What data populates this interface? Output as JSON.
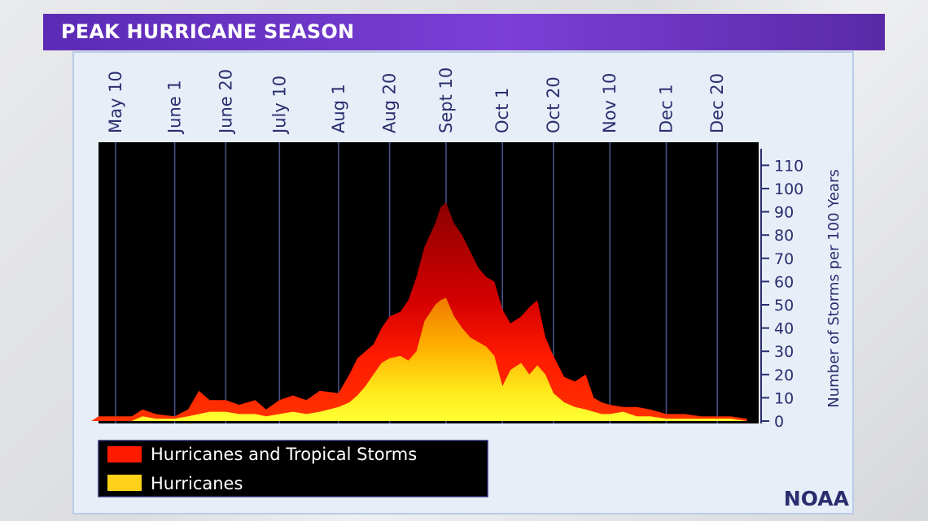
{
  "header": {
    "title": "PEAK HURRICANE SEASON"
  },
  "brand": {
    "source": "NOAA"
  },
  "colors": {
    "title_bar": "#6a35c7",
    "all_storms": "#ff1a00",
    "hurricanes": "#ffd21a",
    "plot_bg": "#000000",
    "axis_text": "#2b2d6e"
  },
  "chart_data": {
    "type": "area",
    "title": "",
    "xlabel": "",
    "ylabel": "Number of Storms per 100 Years",
    "ylim": [
      0,
      120
    ],
    "yticks": [
      0,
      10,
      20,
      30,
      40,
      50,
      60,
      70,
      80,
      90,
      100,
      110
    ],
    "x_dates": [
      "May 10",
      "June 1",
      "June 20",
      "July 10",
      "Aug 1",
      "Aug 20",
      "Sept 10",
      "Oct 1",
      "Oct 20",
      "Nov 10",
      "Dec 1",
      "Dec 20"
    ],
    "grid": "vertical lines at dates",
    "legend": {
      "placement": "bottom-left",
      "entries": [
        "Hurricanes and Tropical Storms",
        "Hurricanes"
      ]
    },
    "series": [
      {
        "name": "Hurricanes and Tropical Storms",
        "x": [
          "May 1",
          "May 10",
          "May 16",
          "May 20",
          "May 25",
          "June 1",
          "June 6",
          "June 10",
          "June 14",
          "June 20",
          "June 25",
          "July 1",
          "July 5",
          "July 10",
          "July 15",
          "July 20",
          "July 25",
          "Aug 1",
          "Aug 5",
          "Aug 8",
          "Aug 11",
          "Aug 14",
          "Aug 17",
          "Aug 20",
          "Aug 24",
          "Aug 27",
          "Aug 30",
          "Sept 2",
          "Sept 6",
          "Sept 8",
          "Sept 10",
          "Sept 13",
          "Sept 16",
          "Sept 19",
          "Sept 22",
          "Sept 25",
          "Sept 28",
          "Oct 1",
          "Oct 4",
          "Oct 8",
          "Oct 11",
          "Oct 14",
          "Oct 17",
          "Oct 20",
          "Oct 24",
          "Oct 28",
          "Nov 1",
          "Nov 4",
          "Nov 7",
          "Nov 10",
          "Nov 15",
          "Nov 20",
          "Nov 25",
          "Dec 1",
          "Dec 8",
          "Dec 14",
          "Dec 20",
          "Dec 25",
          "Dec 31"
        ],
        "values": [
          2,
          2,
          2,
          5,
          3,
          2,
          5,
          13,
          9,
          9,
          7,
          9,
          5,
          9,
          11,
          9,
          13,
          12,
          20,
          27,
          30,
          33,
          40,
          45,
          47,
          52,
          62,
          75,
          85,
          92,
          94,
          85,
          80,
          73,
          66,
          62,
          60,
          48,
          42,
          45,
          49,
          52,
          36,
          28,
          19,
          17,
          20,
          10,
          8,
          7,
          6,
          6,
          5,
          3,
          3,
          2,
          2,
          2,
          1
        ]
      },
      {
        "name": "Hurricanes",
        "x": [
          "May 1",
          "May 10",
          "May 16",
          "May 20",
          "May 25",
          "June 1",
          "June 6",
          "June 10",
          "June 14",
          "June 20",
          "June 25",
          "July 1",
          "July 5",
          "July 10",
          "July 15",
          "July 20",
          "July 25",
          "Aug 1",
          "Aug 5",
          "Aug 8",
          "Aug 11",
          "Aug 14",
          "Aug 17",
          "Aug 20",
          "Aug 24",
          "Aug 27",
          "Aug 30",
          "Sept 2",
          "Sept 6",
          "Sept 8",
          "Sept 10",
          "Sept 13",
          "Sept 16",
          "Sept 19",
          "Sept 22",
          "Sept 25",
          "Sept 28",
          "Oct 1",
          "Oct 4",
          "Oct 8",
          "Oct 11",
          "Oct 14",
          "Oct 17",
          "Oct 20",
          "Oct 24",
          "Oct 28",
          "Nov 1",
          "Nov 4",
          "Nov 7",
          "Nov 10",
          "Nov 15",
          "Nov 20",
          "Nov 25",
          "Dec 1",
          "Dec 8",
          "Dec 14",
          "Dec 20",
          "Dec 25",
          "Dec 31"
        ],
        "values": [
          0,
          0,
          0,
          2,
          1,
          1,
          2,
          3,
          4,
          4,
          3,
          3,
          2,
          3,
          4,
          3,
          4,
          6,
          8,
          11,
          15,
          20,
          25,
          27,
          28,
          26,
          30,
          43,
          50,
          52,
          53,
          45,
          40,
          36,
          34,
          32,
          28,
          15,
          22,
          25,
          20,
          24,
          20,
          12,
          8,
          6,
          5,
          4,
          3,
          3,
          4,
          2,
          2,
          1,
          1,
          1,
          1,
          1,
          0
        ]
      }
    ]
  }
}
